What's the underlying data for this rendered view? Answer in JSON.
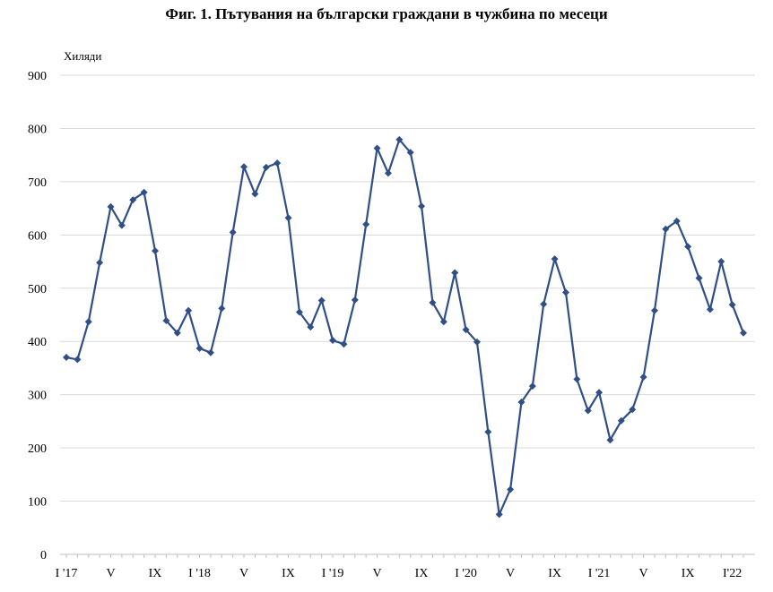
{
  "chart_data": {
    "type": "line",
    "title": "Фиг. 1. Пътувания на български граждани в чужбина по месеци",
    "ylabel": "Хиляди",
    "xlabel": "",
    "ylim": [
      0,
      900
    ],
    "yticks": [
      0,
      100,
      200,
      300,
      400,
      500,
      600,
      700,
      800,
      900
    ],
    "grid": true,
    "legend": "none",
    "color": "#2f4f86",
    "xtick_labels": [
      {
        "index": 0,
        "label": "I '17"
      },
      {
        "index": 4,
        "label": "V"
      },
      {
        "index": 8,
        "label": "IX"
      },
      {
        "index": 12,
        "label": "I '18"
      },
      {
        "index": 16,
        "label": "V"
      },
      {
        "index": 20,
        "label": "IX"
      },
      {
        "index": 24,
        "label": "I '19"
      },
      {
        "index": 28,
        "label": "V"
      },
      {
        "index": 32,
        "label": "IX"
      },
      {
        "index": 36,
        "label": "I '20"
      },
      {
        "index": 40,
        "label": "V"
      },
      {
        "index": 44,
        "label": "IX"
      },
      {
        "index": 48,
        "label": "I '21"
      },
      {
        "index": 52,
        "label": "V"
      },
      {
        "index": 56,
        "label": "IX"
      },
      {
        "index": 60,
        "label": "I'22"
      }
    ],
    "values": [
      370,
      366,
      437,
      548,
      653,
      618,
      666,
      680,
      570,
      439,
      416,
      458,
      387,
      379,
      462,
      605,
      728,
      677,
      727,
      735,
      632,
      455,
      427,
      477,
      402,
      395,
      478,
      620,
      763,
      716,
      779,
      755,
      654,
      473,
      437,
      529,
      422,
      399,
      230,
      75,
      122,
      286,
      316,
      470,
      555,
      492,
      329,
      270,
      304,
      215,
      251,
      272,
      333,
      458,
      611,
      626,
      578,
      519,
      460,
      550,
      469,
      416
    ]
  }
}
